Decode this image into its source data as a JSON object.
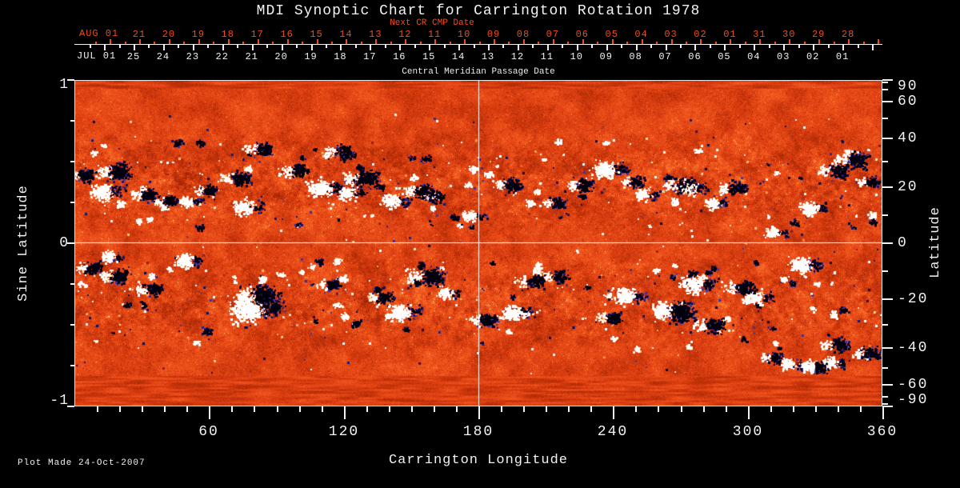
{
  "title": "MDI Synoptic Chart for Carrington Rotation 1978",
  "footer": "Plot Made 24-Oct-2007",
  "colors": {
    "background": "#000000",
    "axis_white": "#f2f2f2",
    "accent_red": "#ee4c1a",
    "map_base_orange": "#e8481c",
    "negative_navy": "#10104a",
    "positive_white": "#ffffff",
    "crosshair": "#ffffff"
  },
  "next_cr_axis": {
    "caption": "Next CR CMP Date",
    "month_label": "AUG 01",
    "days": [
      "21",
      "20",
      "19",
      "18",
      "17",
      "16",
      "15",
      "14",
      "13",
      "12",
      "11",
      "10",
      "09",
      "08",
      "07",
      "06",
      "05",
      "04",
      "03",
      "02",
      "01",
      "31",
      "30",
      "29",
      "28"
    ]
  },
  "cmp_axis": {
    "caption": "Central Meridian Passage Date",
    "month_label": "JUL 01",
    "days": [
      "25",
      "24",
      "23",
      "22",
      "21",
      "20",
      "19",
      "18",
      "17",
      "16",
      "15",
      "14",
      "13",
      "12",
      "11",
      "10",
      "09",
      "08",
      "07",
      "06",
      "05",
      "04",
      "03",
      "02",
      "01"
    ]
  },
  "left_axis": {
    "label": "Sine Latitude",
    "ticks": [
      "1",
      "0",
      "-1"
    ]
  },
  "right_axis": {
    "label": "Latitude",
    "ticks": [
      "90",
      "60",
      "40",
      "20",
      "0",
      "-20",
      "-40",
      "-60",
      "-90"
    ]
  },
  "bottom_axis": {
    "label": "Carrington Longitude",
    "ticks": [
      "60",
      "120",
      "180",
      "240",
      "300",
      "360"
    ]
  },
  "chart_data": {
    "type": "heatmap",
    "title": "MDI Synoptic Chart for Carrington Rotation 1978",
    "xlabel": "Carrington Longitude",
    "xlim": [
      0,
      360
    ],
    "xticks": [
      60,
      120,
      180,
      240,
      300,
      360
    ],
    "x_minor_tick_step_deg": 10,
    "ylabel_left": "Sine Latitude",
    "ylim_sine_latitude": [
      -1,
      1
    ],
    "yticks_left": [
      1,
      0,
      -1
    ],
    "y_minor_tick_step_sine": 0.25,
    "ylabel_right": "Latitude",
    "yticks_right_deg": [
      90,
      60,
      40,
      20,
      0,
      -20,
      -40,
      -60,
      -90
    ],
    "y_minor_tick_step_deg": 10,
    "grid_crosshair": {
      "longitude": 180,
      "latitude": 0
    },
    "legend_position": "none",
    "palette": [
      "#00000c",
      "#18186e",
      "#3e3ec4",
      "#a02806",
      "#c8340a",
      "#e8481c",
      "#f5622c",
      "#ff8c36",
      "#ffc66e",
      "#ffeebe",
      "#ffffff"
    ],
    "polarity_colors": {
      "negative": "dark navy/blue",
      "background": "orange-red granulation",
      "positive": "yellow-white"
    },
    "artifact_bands": {
      "top_sine_latitude": [
        0.95,
        1.0
      ],
      "bottom_sine_latitude": [
        -1.0,
        -0.82
      ],
      "appearance": "horizontal streaking"
    },
    "active_regions_lon_sinlat_pol_size": [
      [
        12,
        0.32,
        1,
        1.4
      ],
      [
        50,
        0.26,
        1,
        1.0
      ],
      [
        75,
        0.22,
        1,
        1.3
      ],
      [
        109,
        0.34,
        1,
        1.5
      ],
      [
        121,
        0.31,
        1,
        1.2
      ],
      [
        141,
        0.26,
        1,
        1.2
      ],
      [
        176,
        0.17,
        1,
        1.0
      ],
      [
        236,
        0.46,
        1,
        1.5
      ],
      [
        253,
        0.3,
        1,
        1.0
      ],
      [
        273,
        0.34,
        1,
        1.3
      ],
      [
        284,
        0.25,
        1,
        1.0
      ],
      [
        311,
        0.07,
        1,
        1.0
      ],
      [
        327,
        0.22,
        1,
        1.2
      ],
      [
        5,
        0.42,
        -1,
        1.2
      ],
      [
        20,
        0.44,
        -1,
        1.5
      ],
      [
        33,
        0.3,
        -1,
        1.2
      ],
      [
        42,
        0.26,
        -1,
        1.0
      ],
      [
        60,
        0.33,
        -1,
        1.0
      ],
      [
        74,
        0.4,
        -1,
        1.3
      ],
      [
        84,
        0.58,
        -1,
        1.2
      ],
      [
        100,
        0.45,
        -1,
        1.2
      ],
      [
        120,
        0.56,
        -1,
        1.3
      ],
      [
        130,
        0.4,
        -1,
        1.5
      ],
      [
        155,
        0.32,
        -1,
        1.3
      ],
      [
        161,
        0.29,
        -1,
        1.0
      ],
      [
        195,
        0.36,
        -1,
        1.2
      ],
      [
        215,
        0.25,
        -1,
        1.0
      ],
      [
        227,
        0.36,
        -1,
        1.2
      ],
      [
        250,
        0.38,
        -1,
        1.0
      ],
      [
        272,
        0.36,
        -1,
        1.4
      ],
      [
        295,
        0.34,
        -1,
        1.2
      ],
      [
        340,
        0.45,
        -1,
        1.3
      ],
      [
        348,
        0.51,
        -1,
        1.4
      ],
      [
        355,
        0.38,
        -1,
        1.0
      ],
      [
        15,
        -0.08,
        1,
        1.0
      ],
      [
        49,
        -0.1,
        1,
        1.2
      ],
      [
        77,
        -0.4,
        1,
        2.2
      ],
      [
        145,
        -0.42,
        1,
        1.4
      ],
      [
        165,
        -0.3,
        1,
        1.0
      ],
      [
        195,
        -0.42,
        1,
        1.3
      ],
      [
        245,
        -0.32,
        1,
        1.4
      ],
      [
        262,
        -0.4,
        1,
        1.2
      ],
      [
        275,
        -0.25,
        1,
        1.5
      ],
      [
        303,
        -0.33,
        1,
        1.2
      ],
      [
        323,
        -0.13,
        1,
        1.4
      ],
      [
        318,
        -0.74,
        1,
        1.0
      ],
      [
        327,
        -0.75,
        1,
        1.1
      ],
      [
        337,
        -0.73,
        1,
        1.0
      ],
      [
        8,
        -0.15,
        -1,
        1.1
      ],
      [
        20,
        -0.2,
        -1,
        1.3
      ],
      [
        35,
        -0.28,
        -1,
        1.2
      ],
      [
        84,
        -0.32,
        -1,
        1.8
      ],
      [
        115,
        -0.25,
        -1,
        1.0
      ],
      [
        138,
        -0.33,
        -1,
        1.1
      ],
      [
        159,
        -0.2,
        -1,
        1.6
      ],
      [
        184,
        -0.47,
        -1,
        1.2
      ],
      [
        205,
        -0.23,
        -1,
        1.2
      ],
      [
        216,
        -0.2,
        -1,
        1.1
      ],
      [
        240,
        -0.45,
        -1,
        1.1
      ],
      [
        270,
        -0.42,
        -1,
        1.8
      ],
      [
        285,
        -0.5,
        -1,
        1.3
      ],
      [
        298,
        -0.27,
        -1,
        1.3
      ],
      [
        312,
        -0.7,
        -1,
        1.0
      ],
      [
        332,
        -0.76,
        -1,
        1.0
      ],
      [
        341,
        -0.62,
        -1,
        1.2
      ],
      [
        355,
        -0.67,
        -1,
        1.2
      ]
    ],
    "top_axes": {
      "next_cr_cmp_days": [
        "21",
        "20",
        "19",
        "18",
        "17",
        "16",
        "15",
        "14",
        "13",
        "12",
        "11",
        "10",
        "09",
        "08",
        "07",
        "06",
        "05",
        "04",
        "03",
        "02",
        "01",
        "31",
        "30",
        "29",
        "28"
      ],
      "cmp_days": [
        "25",
        "24",
        "23",
        "22",
        "21",
        "20",
        "19",
        "18",
        "17",
        "16",
        "15",
        "14",
        "13",
        "12",
        "11",
        "10",
        "09",
        "08",
        "07",
        "06",
        "05",
        "04",
        "03",
        "02",
        "01"
      ]
    }
  }
}
